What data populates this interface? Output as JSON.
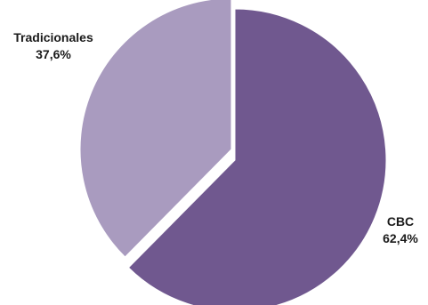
{
  "chart_data": {
    "type": "pie",
    "title": "",
    "slices": [
      {
        "name": "CBC",
        "value": 62.4,
        "label": "62,4%",
        "color": "#70588f"
      },
      {
        "name": "Tradicionales",
        "value": 37.6,
        "label": "37,6%",
        "color": "#a99bbf"
      }
    ],
    "exploded": true,
    "legend": "none"
  }
}
